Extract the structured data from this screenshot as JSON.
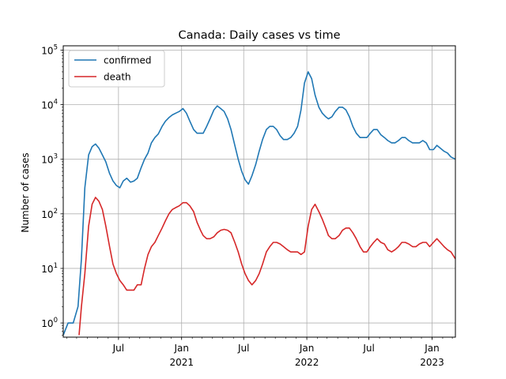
{
  "chart_data": {
    "type": "line",
    "title": "Canada: Daily  cases vs time",
    "xlabel": "",
    "ylabel": "Number of cases",
    "yscale": "log",
    "ylim": [
      0.55,
      120000
    ],
    "xlim": [
      "2020-01-22",
      "2023-03-10"
    ],
    "grid": true,
    "legend_position": "top-left",
    "y_ticks": [
      {
        "value": 1,
        "label_base": "10",
        "label_exp": "0"
      },
      {
        "value": 10,
        "label_base": "10",
        "label_exp": "1"
      },
      {
        "value": 100,
        "label_base": "10",
        "label_exp": "2"
      },
      {
        "value": 1000,
        "label_base": "10",
        "label_exp": "3"
      },
      {
        "value": 10000,
        "label_base": "10",
        "label_exp": "4"
      },
      {
        "value": 100000,
        "label_base": "10",
        "label_exp": "5"
      }
    ],
    "x_ticks": [
      {
        "date": "2020-07-01",
        "label": "Jul",
        "year": ""
      },
      {
        "date": "2021-01-01",
        "label": "Jan",
        "year": "2021"
      },
      {
        "date": "2021-07-01",
        "label": "Jul",
        "year": ""
      },
      {
        "date": "2022-01-01",
        "label": "Jan",
        "year": "2022"
      },
      {
        "date": "2022-07-01",
        "label": "Jul",
        "year": ""
      },
      {
        "date": "2023-01-01",
        "label": "Jan",
        "year": "2023"
      }
    ],
    "series": [
      {
        "name": "confirmed",
        "color": "#1f77b4",
        "points": [
          [
            "2020-01-22",
            0.6
          ],
          [
            "2020-02-05",
            1
          ],
          [
            "2020-02-20",
            1
          ],
          [
            "2020-03-05",
            2
          ],
          [
            "2020-03-15",
            15
          ],
          [
            "2020-03-25",
            300
          ],
          [
            "2020-04-05",
            1200
          ],
          [
            "2020-04-15",
            1700
          ],
          [
            "2020-04-25",
            1900
          ],
          [
            "2020-05-05",
            1600
          ],
          [
            "2020-05-15",
            1200
          ],
          [
            "2020-05-25",
            900
          ],
          [
            "2020-06-05",
            550
          ],
          [
            "2020-06-15",
            400
          ],
          [
            "2020-06-25",
            330
          ],
          [
            "2020-07-05",
            300
          ],
          [
            "2020-07-15",
            400
          ],
          [
            "2020-07-25",
            450
          ],
          [
            "2020-08-05",
            380
          ],
          [
            "2020-08-15",
            400
          ],
          [
            "2020-08-25",
            450
          ],
          [
            "2020-09-05",
            700
          ],
          [
            "2020-09-15",
            1000
          ],
          [
            "2020-09-25",
            1300
          ],
          [
            "2020-10-05",
            2000
          ],
          [
            "2020-10-15",
            2500
          ],
          [
            "2020-10-25",
            2900
          ],
          [
            "2020-11-05",
            4000
          ],
          [
            "2020-11-15",
            5000
          ],
          [
            "2020-11-25",
            5800
          ],
          [
            "2020-12-05",
            6500
          ],
          [
            "2020-12-15",
            7000
          ],
          [
            "2020-12-25",
            7500
          ],
          [
            "2021-01-05",
            8500
          ],
          [
            "2021-01-15",
            7000
          ],
          [
            "2021-01-25",
            5000
          ],
          [
            "2021-02-05",
            3500
          ],
          [
            "2021-02-15",
            3000
          ],
          [
            "2021-02-25",
            3000
          ],
          [
            "2021-03-05",
            3000
          ],
          [
            "2021-03-15",
            4000
          ],
          [
            "2021-03-25",
            5500
          ],
          [
            "2021-04-05",
            8000
          ],
          [
            "2021-04-15",
            9500
          ],
          [
            "2021-04-25",
            8500
          ],
          [
            "2021-05-05",
            7500
          ],
          [
            "2021-05-15",
            5500
          ],
          [
            "2021-05-25",
            3500
          ],
          [
            "2021-06-05",
            1800
          ],
          [
            "2021-06-15",
            1000
          ],
          [
            "2021-06-25",
            600
          ],
          [
            "2021-07-05",
            420
          ],
          [
            "2021-07-15",
            350
          ],
          [
            "2021-07-25",
            500
          ],
          [
            "2021-08-05",
            800
          ],
          [
            "2021-08-15",
            1400
          ],
          [
            "2021-08-25",
            2300
          ],
          [
            "2021-09-05",
            3500
          ],
          [
            "2021-09-15",
            4000
          ],
          [
            "2021-09-25",
            4000
          ],
          [
            "2021-10-05",
            3500
          ],
          [
            "2021-10-15",
            2700
          ],
          [
            "2021-10-25",
            2300
          ],
          [
            "2021-11-05",
            2300
          ],
          [
            "2021-11-15",
            2500
          ],
          [
            "2021-11-25",
            3000
          ],
          [
            "2021-12-05",
            4000
          ],
          [
            "2021-12-15",
            8000
          ],
          [
            "2021-12-25",
            25000
          ],
          [
            "2022-01-05",
            40000
          ],
          [
            "2022-01-15",
            30000
          ],
          [
            "2022-01-25",
            15000
          ],
          [
            "2022-02-05",
            9000
          ],
          [
            "2022-02-15",
            7000
          ],
          [
            "2022-02-25",
            6000
          ],
          [
            "2022-03-05",
            5500
          ],
          [
            "2022-03-15",
            6000
          ],
          [
            "2022-03-25",
            7500
          ],
          [
            "2022-04-05",
            9000
          ],
          [
            "2022-04-15",
            9000
          ],
          [
            "2022-04-25",
            8000
          ],
          [
            "2022-05-05",
            6000
          ],
          [
            "2022-05-15",
            4000
          ],
          [
            "2022-05-25",
            3000
          ],
          [
            "2022-06-05",
            2500
          ],
          [
            "2022-06-15",
            2500
          ],
          [
            "2022-06-25",
            2500
          ],
          [
            "2022-07-05",
            3000
          ],
          [
            "2022-07-15",
            3500
          ],
          [
            "2022-07-25",
            3500
          ],
          [
            "2022-08-05",
            2800
          ],
          [
            "2022-08-15",
            2500
          ],
          [
            "2022-08-25",
            2200
          ],
          [
            "2022-09-05",
            2000
          ],
          [
            "2022-09-15",
            2000
          ],
          [
            "2022-09-25",
            2200
          ],
          [
            "2022-10-05",
            2500
          ],
          [
            "2022-10-15",
            2500
          ],
          [
            "2022-10-25",
            2200
          ],
          [
            "2022-11-05",
            2000
          ],
          [
            "2022-11-15",
            2000
          ],
          [
            "2022-11-25",
            2000
          ],
          [
            "2022-12-05",
            2200
          ],
          [
            "2022-12-15",
            2000
          ],
          [
            "2022-12-25",
            1500
          ],
          [
            "2023-01-05",
            1500
          ],
          [
            "2023-01-15",
            1800
          ],
          [
            "2023-01-25",
            1600
          ],
          [
            "2023-02-05",
            1400
          ],
          [
            "2023-02-15",
            1300
          ],
          [
            "2023-02-25",
            1100
          ],
          [
            "2023-03-10",
            1000
          ]
        ]
      },
      {
        "name": "death",
        "color": "#d62728",
        "points": [
          [
            "2020-03-08",
            0.6
          ],
          [
            "2020-03-15",
            2
          ],
          [
            "2020-03-25",
            8
          ],
          [
            "2020-04-05",
            60
          ],
          [
            "2020-04-15",
            150
          ],
          [
            "2020-04-25",
            200
          ],
          [
            "2020-05-05",
            170
          ],
          [
            "2020-05-15",
            120
          ],
          [
            "2020-05-25",
            60
          ],
          [
            "2020-06-05",
            25
          ],
          [
            "2020-06-15",
            12
          ],
          [
            "2020-06-25",
            8
          ],
          [
            "2020-07-05",
            6
          ],
          [
            "2020-07-15",
            5
          ],
          [
            "2020-07-25",
            4
          ],
          [
            "2020-08-05",
            4
          ],
          [
            "2020-08-15",
            4
          ],
          [
            "2020-08-25",
            5
          ],
          [
            "2020-09-05",
            5
          ],
          [
            "2020-09-15",
            10
          ],
          [
            "2020-09-25",
            18
          ],
          [
            "2020-10-05",
            25
          ],
          [
            "2020-10-15",
            30
          ],
          [
            "2020-10-25",
            40
          ],
          [
            "2020-11-05",
            55
          ],
          [
            "2020-11-15",
            75
          ],
          [
            "2020-11-25",
            100
          ],
          [
            "2020-12-05",
            120
          ],
          [
            "2020-12-15",
            130
          ],
          [
            "2020-12-25",
            140
          ],
          [
            "2021-01-05",
            160
          ],
          [
            "2021-01-15",
            160
          ],
          [
            "2021-01-25",
            140
          ],
          [
            "2021-02-05",
            110
          ],
          [
            "2021-02-15",
            70
          ],
          [
            "2021-02-25",
            50
          ],
          [
            "2021-03-05",
            40
          ],
          [
            "2021-03-15",
            35
          ],
          [
            "2021-03-25",
            35
          ],
          [
            "2021-04-05",
            38
          ],
          [
            "2021-04-15",
            45
          ],
          [
            "2021-04-25",
            50
          ],
          [
            "2021-05-05",
            52
          ],
          [
            "2021-05-15",
            50
          ],
          [
            "2021-05-25",
            45
          ],
          [
            "2021-06-05",
            30
          ],
          [
            "2021-06-15",
            20
          ],
          [
            "2021-06-25",
            12
          ],
          [
            "2021-07-05",
            8
          ],
          [
            "2021-07-15",
            6
          ],
          [
            "2021-07-25",
            5
          ],
          [
            "2021-08-05",
            6
          ],
          [
            "2021-08-15",
            8
          ],
          [
            "2021-08-25",
            12
          ],
          [
            "2021-09-05",
            20
          ],
          [
            "2021-09-15",
            25
          ],
          [
            "2021-09-25",
            30
          ],
          [
            "2021-10-05",
            30
          ],
          [
            "2021-10-15",
            28
          ],
          [
            "2021-10-25",
            25
          ],
          [
            "2021-11-05",
            22
          ],
          [
            "2021-11-15",
            20
          ],
          [
            "2021-11-25",
            20
          ],
          [
            "2021-12-05",
            20
          ],
          [
            "2021-12-15",
            18
          ],
          [
            "2021-12-25",
            20
          ],
          [
            "2022-01-05",
            60
          ],
          [
            "2022-01-15",
            120
          ],
          [
            "2022-01-25",
            150
          ],
          [
            "2022-02-05",
            110
          ],
          [
            "2022-02-15",
            80
          ],
          [
            "2022-02-25",
            55
          ],
          [
            "2022-03-05",
            40
          ],
          [
            "2022-03-15",
            35
          ],
          [
            "2022-03-25",
            35
          ],
          [
            "2022-04-05",
            40
          ],
          [
            "2022-04-15",
            50
          ],
          [
            "2022-04-25",
            55
          ],
          [
            "2022-05-05",
            55
          ],
          [
            "2022-05-15",
            45
          ],
          [
            "2022-05-25",
            35
          ],
          [
            "2022-06-05",
            25
          ],
          [
            "2022-06-15",
            20
          ],
          [
            "2022-06-25",
            20
          ],
          [
            "2022-07-05",
            25
          ],
          [
            "2022-07-15",
            30
          ],
          [
            "2022-07-25",
            35
          ],
          [
            "2022-08-05",
            30
          ],
          [
            "2022-08-15",
            28
          ],
          [
            "2022-08-25",
            22
          ],
          [
            "2022-09-05",
            20
          ],
          [
            "2022-09-15",
            22
          ],
          [
            "2022-09-25",
            25
          ],
          [
            "2022-10-05",
            30
          ],
          [
            "2022-10-15",
            30
          ],
          [
            "2022-10-25",
            28
          ],
          [
            "2022-11-05",
            25
          ],
          [
            "2022-11-15",
            25
          ],
          [
            "2022-11-25",
            28
          ],
          [
            "2022-12-05",
            30
          ],
          [
            "2022-12-15",
            30
          ],
          [
            "2022-12-25",
            25
          ],
          [
            "2023-01-05",
            30
          ],
          [
            "2023-01-15",
            35
          ],
          [
            "2023-01-25",
            30
          ],
          [
            "2023-02-05",
            25
          ],
          [
            "2023-02-15",
            22
          ],
          [
            "2023-02-25",
            20
          ],
          [
            "2023-03-10",
            15
          ]
        ]
      }
    ]
  }
}
